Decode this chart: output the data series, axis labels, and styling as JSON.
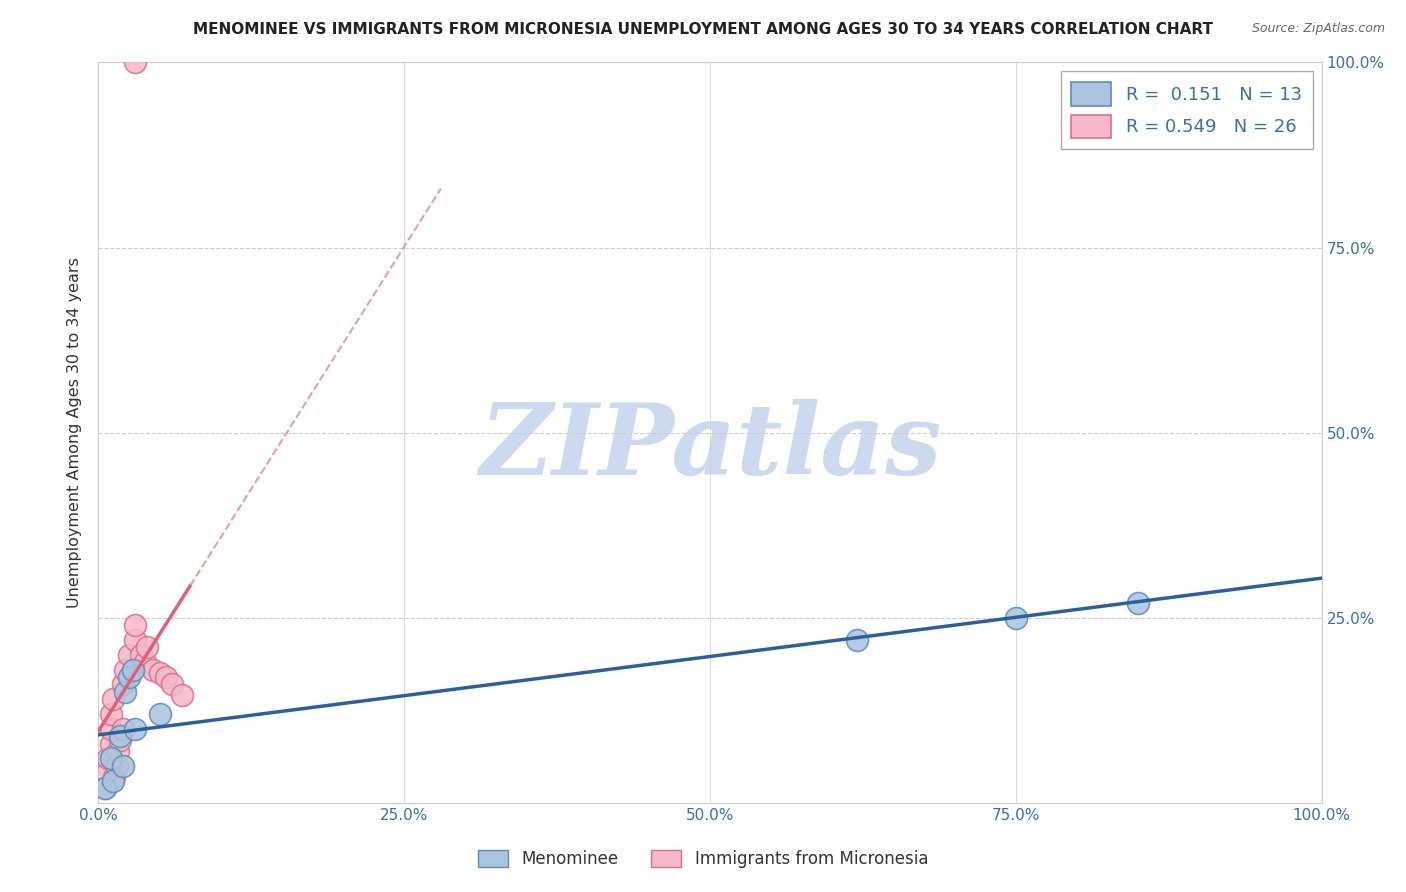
{
  "title": "MENOMINEE VS IMMIGRANTS FROM MICRONESIA UNEMPLOYMENT AMONG AGES 30 TO 34 YEARS CORRELATION CHART",
  "source": "Source: ZipAtlas.com",
  "ylabel": "Unemployment Among Ages 30 to 34 years",
  "xlim": [
    0,
    1.0
  ],
  "ylim": [
    0,
    1.0
  ],
  "xtick_labels": [
    "0.0%",
    "25.0%",
    "50.0%",
    "75.0%",
    "100.0%"
  ],
  "xtick_values": [
    0.0,
    0.25,
    0.5,
    0.75,
    1.0
  ],
  "ytick_values": [
    0.25,
    0.5,
    0.75,
    1.0
  ],
  "right_ytick_labels": [
    "25.0%",
    "50.0%",
    "75.0%",
    "100.0%"
  ],
  "right_ytick_values": [
    0.25,
    0.5,
    0.75,
    1.0
  ],
  "menominee_x": [
    0.005,
    0.01,
    0.012,
    0.018,
    0.02,
    0.022,
    0.025,
    0.028,
    0.03,
    0.05,
    0.62,
    0.75,
    0.85
  ],
  "menominee_y": [
    0.02,
    0.06,
    0.03,
    0.09,
    0.05,
    0.15,
    0.17,
    0.18,
    0.1,
    0.12,
    0.22,
    0.25,
    0.27
  ],
  "micronesia_x": [
    0.005,
    0.007,
    0.008,
    0.01,
    0.01,
    0.01,
    0.012,
    0.013,
    0.015,
    0.016,
    0.018,
    0.02,
    0.02,
    0.022,
    0.025,
    0.03,
    0.03,
    0.035,
    0.038,
    0.04,
    0.045,
    0.05,
    0.055,
    0.06,
    0.068,
    0.03
  ],
  "micronesia_y": [
    0.02,
    0.04,
    0.06,
    0.08,
    0.1,
    0.12,
    0.14,
    0.035,
    0.05,
    0.07,
    0.085,
    0.1,
    0.16,
    0.18,
    0.2,
    0.22,
    0.24,
    0.2,
    0.19,
    0.21,
    0.18,
    0.175,
    0.17,
    0.16,
    0.145,
    1.0
  ],
  "menominee_color": "#aac4e0",
  "micronesia_color": "#f4b8c8",
  "menominee_edge": "#5b8db8",
  "micronesia_edge": "#d9708a",
  "menominee_R": "0.151",
  "menominee_N": "13",
  "micronesia_R": "0.549",
  "micronesia_N": "26",
  "trend_menominee_color": "#2c5f9e",
  "trend_micronesia_solid_color": "#e0607a",
  "trend_micronesia_dashed_color": "#e09090",
  "watermark_text": "ZIPatlas",
  "watermark_color": "#ccd9ee",
  "source_text": "Source: ZipAtlas.com",
  "bottom_legend_menominee": "Menominee",
  "bottom_legend_micronesia": "Immigrants from Micronesia",
  "background_color": "#ffffff",
  "grid_color": "#cccccc",
  "tick_color": "#3a6fa8",
  "title_color": "#222222",
  "ylabel_color": "#333333"
}
